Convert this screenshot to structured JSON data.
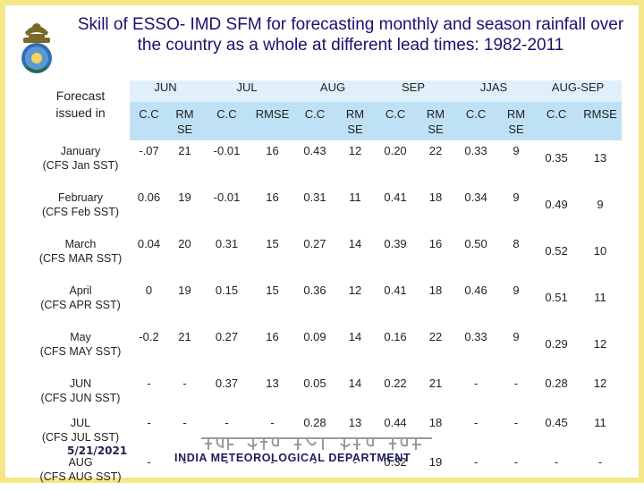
{
  "title": "Skill of ESSO- IMD SFM for forecasting monthly and season rainfall over the country as a whole at different lead times: 1982-2011",
  "corner_label": "Forecast issued in",
  "month_groups": [
    "JUN",
    "JUL",
    "AUG",
    "SEP",
    "JJAS",
    "AUG-SEP"
  ],
  "sub_headers": [
    "C.C",
    "RM SE",
    "C.C",
    "RMSE",
    "C.C",
    "RM SE",
    "C.C",
    "RM SE",
    "C.C",
    "RM SE",
    "C.C",
    "RMSE"
  ],
  "rows": [
    {
      "label": "January (CFS Jan SST)",
      "cells": [
        "-.07",
        "21",
        "-0.01",
        "16",
        "0.43",
        "12",
        "0.20",
        "22",
        "0.33",
        "9",
        "0.35",
        "13"
      ],
      "highlight": [
        4,
        8
      ]
    },
    {
      "label": "February (CFS Feb SST)",
      "cells": [
        "0.06",
        "19",
        "-0.01",
        "16",
        "0.31",
        "11",
        "0.41",
        "18",
        "0.34",
        "9",
        "0.49",
        "9"
      ],
      "highlight": [
        4,
        6,
        8,
        10
      ]
    },
    {
      "label": "March (CFS MAR SST)",
      "cells": [
        "0.04",
        "20",
        "0.31",
        "15",
        "0.27",
        "14",
        "0.39",
        "16",
        "0.50",
        "8",
        "0.52",
        "10"
      ],
      "highlight": [
        2,
        8,
        10
      ]
    },
    {
      "label": "April (CFS APR SST)",
      "cells": [
        "0",
        "19",
        "0.15",
        "15",
        "0.36",
        "12",
        "0.41",
        "18",
        "0.46",
        "9",
        "0.51",
        "11"
      ],
      "highlight": [
        4,
        6,
        8,
        10
      ]
    },
    {
      "label": "May (CFS MAY SST)",
      "cells": [
        "-0.2",
        "21",
        "0.27",
        "16",
        "0.09",
        "14",
        "0.16",
        "22",
        "0.33",
        "9",
        "0.29",
        "12"
      ],
      "highlight": [
        8
      ]
    },
    {
      "label": "JUN (CFS JUN SST)",
      "cells": [
        "-",
        "-",
        "0.37",
        "13",
        "0.05",
        "14",
        "0.22",
        "21",
        "-",
        "-",
        "0.28",
        "12"
      ],
      "highlight": [
        2
      ]
    },
    {
      "label": "JUL (CFS JUL SST)",
      "cells": [
        "-",
        "-",
        "-",
        "-",
        "0.28",
        "13",
        "0.44",
        "18",
        "-",
        "-",
        "0.45",
        "11"
      ],
      "highlight": [
        6,
        10
      ]
    },
    {
      "label": "AUG (CFS AUG SST)",
      "cells": [
        "-",
        "-",
        "-",
        "-",
        "-",
        "-",
        "0.32",
        "19",
        "-",
        "-",
        "-",
        "-"
      ],
      "highlight": [
        6
      ]
    }
  ],
  "footer": {
    "date": "5/21/2021",
    "hindi_name": "भारत मौसम विज्ञान विभाग",
    "department": "INDIA METEOROLOGICAL DEPARTMENT"
  },
  "colors": {
    "highlight": "#e0102a",
    "title": "#1b1070",
    "frame": "#f6e68a"
  }
}
